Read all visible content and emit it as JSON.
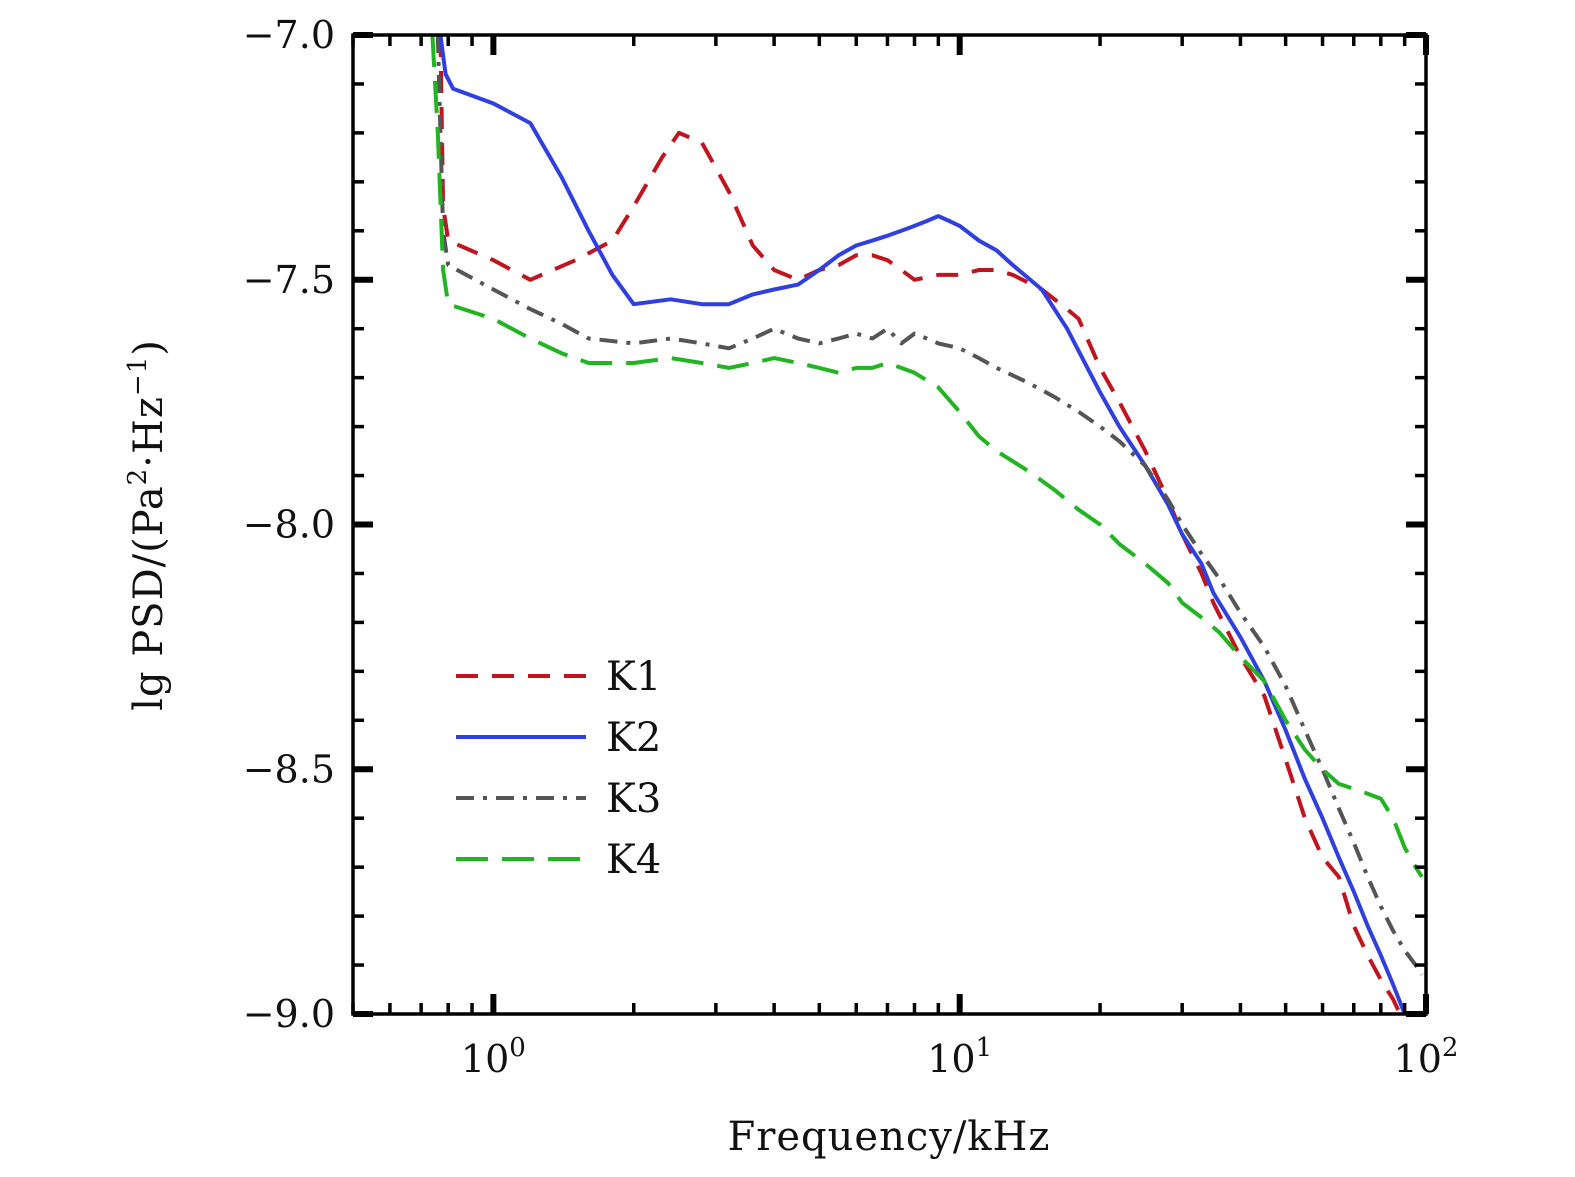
{
  "chart_data": {
    "type": "line",
    "xlabel": "Frequency/kHz",
    "ylabel_parts": {
      "prefix": "lg PSD/(Pa",
      "sup1": "2",
      "mid": "·Hz",
      "sup2": "−1",
      "suffix": ")"
    },
    "x_scale": "log",
    "xlim": [
      0.5,
      100
    ],
    "ylim": [
      -9.0,
      -7.0
    ],
    "x_ticks": [
      {
        "value": 1,
        "base": "10",
        "exp": "0"
      },
      {
        "value": 10,
        "base": "10",
        "exp": "1"
      },
      {
        "value": 100,
        "base": "10",
        "exp": "2"
      }
    ],
    "y_ticks": [
      {
        "value": -7.0,
        "label": "−7.0"
      },
      {
        "value": -7.5,
        "label": "−7.5"
      },
      {
        "value": -8.0,
        "label": "−8.0"
      },
      {
        "value": -8.5,
        "label": "−8.5"
      },
      {
        "value": -9.0,
        "label": "−9.0"
      }
    ],
    "y_minor_step": 0.1,
    "grid": false,
    "legend_position": "lower-left",
    "series": [
      {
        "name": "K1",
        "color": "#c0141e",
        "dash": "22,14",
        "x": [
          0.77,
          0.78,
          0.8,
          1.0,
          1.2,
          1.5,
          1.8,
          2.0,
          2.3,
          2.5,
          2.8,
          3.2,
          3.6,
          4.0,
          4.5,
          5.0,
          5.5,
          6.0,
          6.5,
          7.0,
          7.5,
          8.0,
          9.0,
          10.0,
          11.0,
          12.0,
          13.0,
          15.0,
          17.0,
          18.0,
          20.0,
          22.0,
          25.0,
          28.0,
          30.0,
          33.0,
          35.0,
          40.0,
          45.0,
          50.0,
          55.0,
          60.0,
          65.0,
          70.0,
          75.0,
          80.0,
          85.0,
          88.0
        ],
        "y": [
          -7.0,
          -7.35,
          -7.42,
          -7.46,
          -7.5,
          -7.46,
          -7.42,
          -7.35,
          -7.25,
          -7.2,
          -7.22,
          -7.32,
          -7.43,
          -7.48,
          -7.5,
          -7.48,
          -7.47,
          -7.45,
          -7.45,
          -7.46,
          -7.48,
          -7.5,
          -7.49,
          -7.49,
          -7.48,
          -7.48,
          -7.49,
          -7.52,
          -7.56,
          -7.58,
          -7.68,
          -7.75,
          -7.85,
          -7.95,
          -8.02,
          -8.1,
          -8.16,
          -8.27,
          -8.35,
          -8.48,
          -8.6,
          -8.68,
          -8.72,
          -8.82,
          -8.88,
          -8.93,
          -8.97,
          -9.0
        ]
      },
      {
        "name": "K2",
        "color": "#2f3fe0",
        "dash": "",
        "x": [
          0.77,
          0.79,
          0.82,
          1.0,
          1.2,
          1.4,
          1.6,
          1.8,
          2.0,
          2.4,
          2.8,
          3.2,
          3.6,
          4.0,
          4.5,
          5.0,
          5.5,
          6.0,
          6.5,
          7.0,
          7.5,
          8.0,
          8.5,
          9.0,
          9.5,
          10.0,
          11.0,
          12.0,
          13.0,
          15.0,
          17.0,
          20.0,
          22.0,
          25.0,
          28.0,
          30.0,
          33.0,
          35.0,
          40.0,
          45.0,
          50.0,
          55.0,
          60.0,
          65.0,
          70.0,
          75.0,
          80.0,
          85.0,
          90.0
        ],
        "y": [
          -7.0,
          -7.08,
          -7.11,
          -7.14,
          -7.18,
          -7.29,
          -7.4,
          -7.49,
          -7.55,
          -7.54,
          -7.55,
          -7.55,
          -7.53,
          -7.52,
          -7.51,
          -7.48,
          -7.45,
          -7.43,
          -7.42,
          -7.41,
          -7.4,
          -7.39,
          -7.38,
          -7.37,
          -7.38,
          -7.39,
          -7.42,
          -7.44,
          -7.47,
          -7.52,
          -7.6,
          -7.73,
          -7.8,
          -7.88,
          -7.96,
          -8.02,
          -8.08,
          -8.14,
          -8.23,
          -8.32,
          -8.42,
          -8.52,
          -8.6,
          -8.68,
          -8.75,
          -8.82,
          -8.88,
          -8.94,
          -9.0
        ]
      },
      {
        "name": "K3",
        "color": "#555555",
        "dash": "18,9,4,9",
        "x": [
          0.76,
          0.78,
          0.8,
          1.0,
          1.2,
          1.4,
          1.6,
          2.0,
          2.4,
          2.8,
          3.2,
          3.6,
          4.0,
          4.5,
          5.0,
          5.5,
          6.0,
          6.5,
          7.0,
          7.5,
          8.0,
          8.5,
          9.0,
          10.0,
          11.0,
          12.0,
          14.0,
          16.0,
          18.0,
          20.0,
          22.0,
          25.0,
          28.0,
          30.0,
          33.0,
          36.0,
          40.0,
          45.0,
          50.0,
          55.0,
          60.0,
          65.0,
          70.0,
          75.0,
          80.0,
          85.0,
          90.0,
          95.0,
          98.0
        ],
        "y": [
          -7.0,
          -7.4,
          -7.47,
          -7.52,
          -7.56,
          -7.59,
          -7.62,
          -7.63,
          -7.62,
          -7.63,
          -7.64,
          -7.62,
          -7.6,
          -7.62,
          -7.63,
          -7.62,
          -7.61,
          -7.62,
          -7.6,
          -7.63,
          -7.61,
          -7.62,
          -7.63,
          -7.64,
          -7.66,
          -7.68,
          -7.71,
          -7.74,
          -7.77,
          -7.8,
          -7.83,
          -7.88,
          -7.95,
          -8.0,
          -8.06,
          -8.11,
          -8.18,
          -8.25,
          -8.33,
          -8.42,
          -8.5,
          -8.58,
          -8.65,
          -8.72,
          -8.78,
          -8.83,
          -8.87,
          -8.9,
          -8.92
        ]
      },
      {
        "name": "K4",
        "color": "#22b522",
        "dash": "32,14",
        "x": [
          0.74,
          0.76,
          0.78,
          0.8,
          1.0,
          1.2,
          1.4,
          1.6,
          2.0,
          2.4,
          2.8,
          3.2,
          3.6,
          4.0,
          4.5,
          5.0,
          5.5,
          6.0,
          6.5,
          7.0,
          7.5,
          8.0,
          9.0,
          10.0,
          11.0,
          12.0,
          14.0,
          16.0,
          18.0,
          20.0,
          22.0,
          25.0,
          28.0,
          30.0,
          33.0,
          36.0,
          40.0,
          45.0,
          50.0,
          55.0,
          60.0,
          65.0,
          70.0,
          75.0,
          80.0,
          85.0,
          90.0,
          95.0,
          98.0
        ],
        "y": [
          -7.0,
          -7.2,
          -7.48,
          -7.55,
          -7.58,
          -7.62,
          -7.65,
          -7.67,
          -7.67,
          -7.66,
          -7.67,
          -7.68,
          -7.67,
          -7.66,
          -7.67,
          -7.68,
          -7.69,
          -7.68,
          -7.68,
          -7.67,
          -7.68,
          -7.69,
          -7.72,
          -7.77,
          -7.82,
          -7.85,
          -7.89,
          -7.93,
          -7.97,
          -8.0,
          -8.04,
          -8.08,
          -8.12,
          -8.16,
          -8.19,
          -8.22,
          -8.27,
          -8.32,
          -8.4,
          -8.46,
          -8.5,
          -8.53,
          -8.54,
          -8.55,
          -8.56,
          -8.6,
          -8.66,
          -8.7,
          -8.72
        ]
      }
    ]
  }
}
